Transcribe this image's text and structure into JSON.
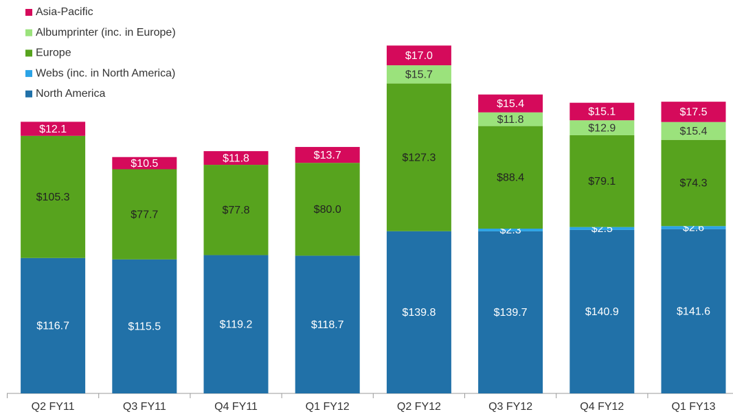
{
  "chart_data": {
    "type": "stacked-bar",
    "categories": [
      "Q2 FY11",
      "Q3 FY11",
      "Q4 FY11",
      "Q1 FY12",
      "Q2 FY12",
      "Q3 FY12",
      "Q4 FY12",
      "Q1 FY13"
    ],
    "series": [
      {
        "name": "North America",
        "color": "#2171a8",
        "label_color": "#ffffff",
        "values": [
          116.7,
          115.5,
          119.2,
          118.7,
          139.8,
          139.7,
          140.9,
          141.6
        ],
        "value_labels": [
          "$116.7",
          "$115.5",
          "$119.2",
          "$118.7",
          "$139.8",
          "$139.7",
          "$140.9",
          "$141.6"
        ]
      },
      {
        "name": "Webs (inc. in North America)",
        "color": "#2ba3e6",
        "label_color": "#ffffff",
        "values": [
          null,
          null,
          null,
          null,
          null,
          2.3,
          2.5,
          2.6
        ],
        "value_labels": [
          null,
          null,
          null,
          null,
          null,
          "$2.3",
          "$2.5",
          "$2.6"
        ]
      },
      {
        "name": "Europe",
        "color": "#57a31e",
        "label_color": "#222222",
        "values": [
          105.3,
          77.7,
          77.8,
          80.0,
          127.3,
          88.4,
          79.1,
          74.3
        ],
        "value_labels": [
          "$105.3",
          "$77.7",
          "$77.8",
          "$80.0",
          "$127.3",
          "$88.4",
          "$79.1",
          "$74.3"
        ]
      },
      {
        "name": "Albumprinter (inc. in Europe)",
        "color": "#9be27c",
        "label_color": "#333333",
        "values": [
          null,
          null,
          null,
          null,
          15.7,
          11.8,
          12.9,
          15.4
        ],
        "value_labels": [
          null,
          null,
          null,
          null,
          "$15.7",
          "$11.8",
          "$12.9",
          "$15.4"
        ]
      },
      {
        "name": "Asia-Pacific",
        "color": "#d50a5b",
        "label_color": "#ffffff",
        "values": [
          12.1,
          10.5,
          11.8,
          13.7,
          17.0,
          15.4,
          15.1,
          17.5
        ],
        "value_labels": [
          "$12.1",
          "$10.5",
          "$11.8",
          "$13.7",
          "$17.0",
          "$15.4",
          "$15.1",
          "$17.5"
        ]
      }
    ]
  }
}
